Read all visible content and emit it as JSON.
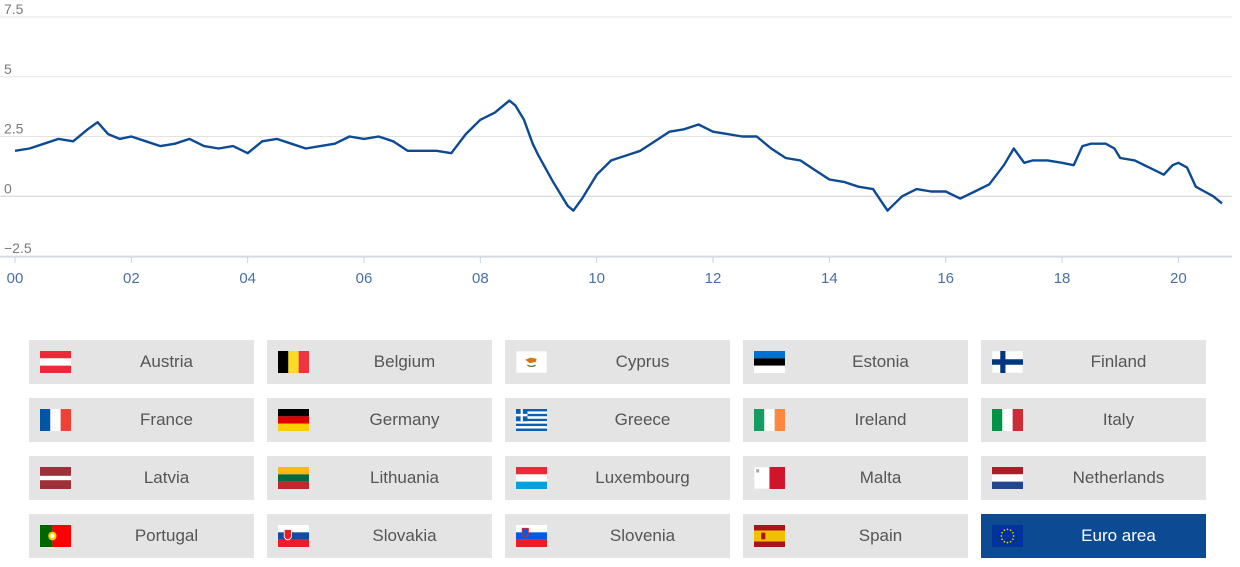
{
  "chart_data": {
    "type": "line",
    "title": "",
    "xlabel": "",
    "ylabel": "",
    "y_ticks": [
      "7.5",
      "5",
      "2.5",
      "0",
      "−2.5"
    ],
    "y_tick_values": [
      7.5,
      5,
      2.5,
      0,
      -2.5
    ],
    "x_ticks": [
      "00",
      "02",
      "04",
      "06",
      "08",
      "10",
      "12",
      "14",
      "16",
      "18",
      "20"
    ],
    "x_tick_values": [
      2000,
      2002,
      2004,
      2006,
      2008,
      2010,
      2012,
      2014,
      2016,
      2018,
      2020
    ],
    "xlim": [
      2000,
      2020.75
    ],
    "ylim": [
      -2.5,
      7.5
    ],
    "grid": true,
    "series": [
      {
        "points": [
          [
            2000.0,
            1.9
          ],
          [
            2000.25,
            2.0
          ],
          [
            2000.5,
            2.2
          ],
          [
            2000.75,
            2.4
          ],
          [
            2001.0,
            2.3
          ],
          [
            2001.25,
            2.8
          ],
          [
            2001.42,
            3.1
          ],
          [
            2001.6,
            2.6
          ],
          [
            2001.8,
            2.4
          ],
          [
            2002.0,
            2.5
          ],
          [
            2002.25,
            2.3
          ],
          [
            2002.5,
            2.1
          ],
          [
            2002.75,
            2.2
          ],
          [
            2003.0,
            2.4
          ],
          [
            2003.25,
            2.1
          ],
          [
            2003.5,
            2.0
          ],
          [
            2003.75,
            2.1
          ],
          [
            2004.0,
            1.8
          ],
          [
            2004.25,
            2.3
          ],
          [
            2004.5,
            2.4
          ],
          [
            2004.75,
            2.2
          ],
          [
            2005.0,
            2.0
          ],
          [
            2005.25,
            2.1
          ],
          [
            2005.5,
            2.2
          ],
          [
            2005.75,
            2.5
          ],
          [
            2006.0,
            2.4
          ],
          [
            2006.25,
            2.5
          ],
          [
            2006.5,
            2.3
          ],
          [
            2006.75,
            1.9
          ],
          [
            2007.0,
            1.9
          ],
          [
            2007.25,
            1.9
          ],
          [
            2007.5,
            1.8
          ],
          [
            2007.75,
            2.6
          ],
          [
            2008.0,
            3.2
          ],
          [
            2008.25,
            3.5
          ],
          [
            2008.5,
            4.0
          ],
          [
            2008.6,
            3.8
          ],
          [
            2008.75,
            3.2
          ],
          [
            2008.9,
            2.2
          ],
          [
            2009.0,
            1.7
          ],
          [
            2009.25,
            0.6
          ],
          [
            2009.5,
            -0.4
          ],
          [
            2009.6,
            -0.6
          ],
          [
            2009.75,
            -0.1
          ],
          [
            2009.9,
            0.5
          ],
          [
            2010.0,
            0.9
          ],
          [
            2010.25,
            1.5
          ],
          [
            2010.5,
            1.7
          ],
          [
            2010.75,
            1.9
          ],
          [
            2011.0,
            2.3
          ],
          [
            2011.25,
            2.7
          ],
          [
            2011.5,
            2.8
          ],
          [
            2011.75,
            3.0
          ],
          [
            2012.0,
            2.7
          ],
          [
            2012.25,
            2.6
          ],
          [
            2012.5,
            2.5
          ],
          [
            2012.75,
            2.5
          ],
          [
            2013.0,
            2.0
          ],
          [
            2013.25,
            1.6
          ],
          [
            2013.5,
            1.5
          ],
          [
            2013.75,
            1.1
          ],
          [
            2014.0,
            0.7
          ],
          [
            2014.25,
            0.6
          ],
          [
            2014.5,
            0.4
          ],
          [
            2014.75,
            0.3
          ],
          [
            2015.0,
            -0.6
          ],
          [
            2015.25,
            0.0
          ],
          [
            2015.5,
            0.3
          ],
          [
            2015.75,
            0.2
          ],
          [
            2016.0,
            0.2
          ],
          [
            2016.25,
            -0.1
          ],
          [
            2016.5,
            0.2
          ],
          [
            2016.75,
            0.5
          ],
          [
            2017.0,
            1.3
          ],
          [
            2017.17,
            2.0
          ],
          [
            2017.35,
            1.4
          ],
          [
            2017.5,
            1.5
          ],
          [
            2017.75,
            1.5
          ],
          [
            2018.0,
            1.4
          ],
          [
            2018.2,
            1.3
          ],
          [
            2018.35,
            2.1
          ],
          [
            2018.5,
            2.2
          ],
          [
            2018.75,
            2.2
          ],
          [
            2018.9,
            2.0
          ],
          [
            2019.0,
            1.6
          ],
          [
            2019.25,
            1.5
          ],
          [
            2019.5,
            1.2
          ],
          [
            2019.75,
            0.9
          ],
          [
            2019.9,
            1.3
          ],
          [
            2020.0,
            1.4
          ],
          [
            2020.15,
            1.2
          ],
          [
            2020.3,
            0.4
          ],
          [
            2020.45,
            0.2
          ],
          [
            2020.6,
            0.0
          ],
          [
            2020.75,
            -0.3
          ]
        ],
        "color": "#0d4a94"
      }
    ]
  },
  "country_buttons": [
    {
      "label": "Austria",
      "flag": "austria-flag"
    },
    {
      "label": "Belgium",
      "flag": "belgium-flag"
    },
    {
      "label": "Cyprus",
      "flag": "cyprus-flag"
    },
    {
      "label": "Estonia",
      "flag": "estonia-flag"
    },
    {
      "label": "Finland",
      "flag": "finland-flag"
    },
    {
      "label": "France",
      "flag": "france-flag"
    },
    {
      "label": "Germany",
      "flag": "germany-flag"
    },
    {
      "label": "Greece",
      "flag": "greece-flag"
    },
    {
      "label": "Ireland",
      "flag": "ireland-flag"
    },
    {
      "label": "Italy",
      "flag": "italy-flag"
    },
    {
      "label": "Latvia",
      "flag": "latvia-flag"
    },
    {
      "label": "Lithuania",
      "flag": "lithuania-flag"
    },
    {
      "label": "Luxembourg",
      "flag": "luxembourg-flag"
    },
    {
      "label": "Malta",
      "flag": "malta-flag"
    },
    {
      "label": "Netherlands",
      "flag": "netherlands-flag"
    },
    {
      "label": "Portugal",
      "flag": "portugal-flag"
    },
    {
      "label": "Slovakia",
      "flag": "slovakia-flag"
    },
    {
      "label": "Slovenia",
      "flag": "slovenia-flag"
    },
    {
      "label": "Spain",
      "flag": "spain-flag"
    },
    {
      "label": "Euro area",
      "flag": "eu-flag",
      "selected": true
    }
  ],
  "colors": {
    "button_bg": "#e4e4e4",
    "button_selected_bg": "#0d4a94",
    "button_text": "#555555",
    "series_line": "#0d4a94"
  }
}
